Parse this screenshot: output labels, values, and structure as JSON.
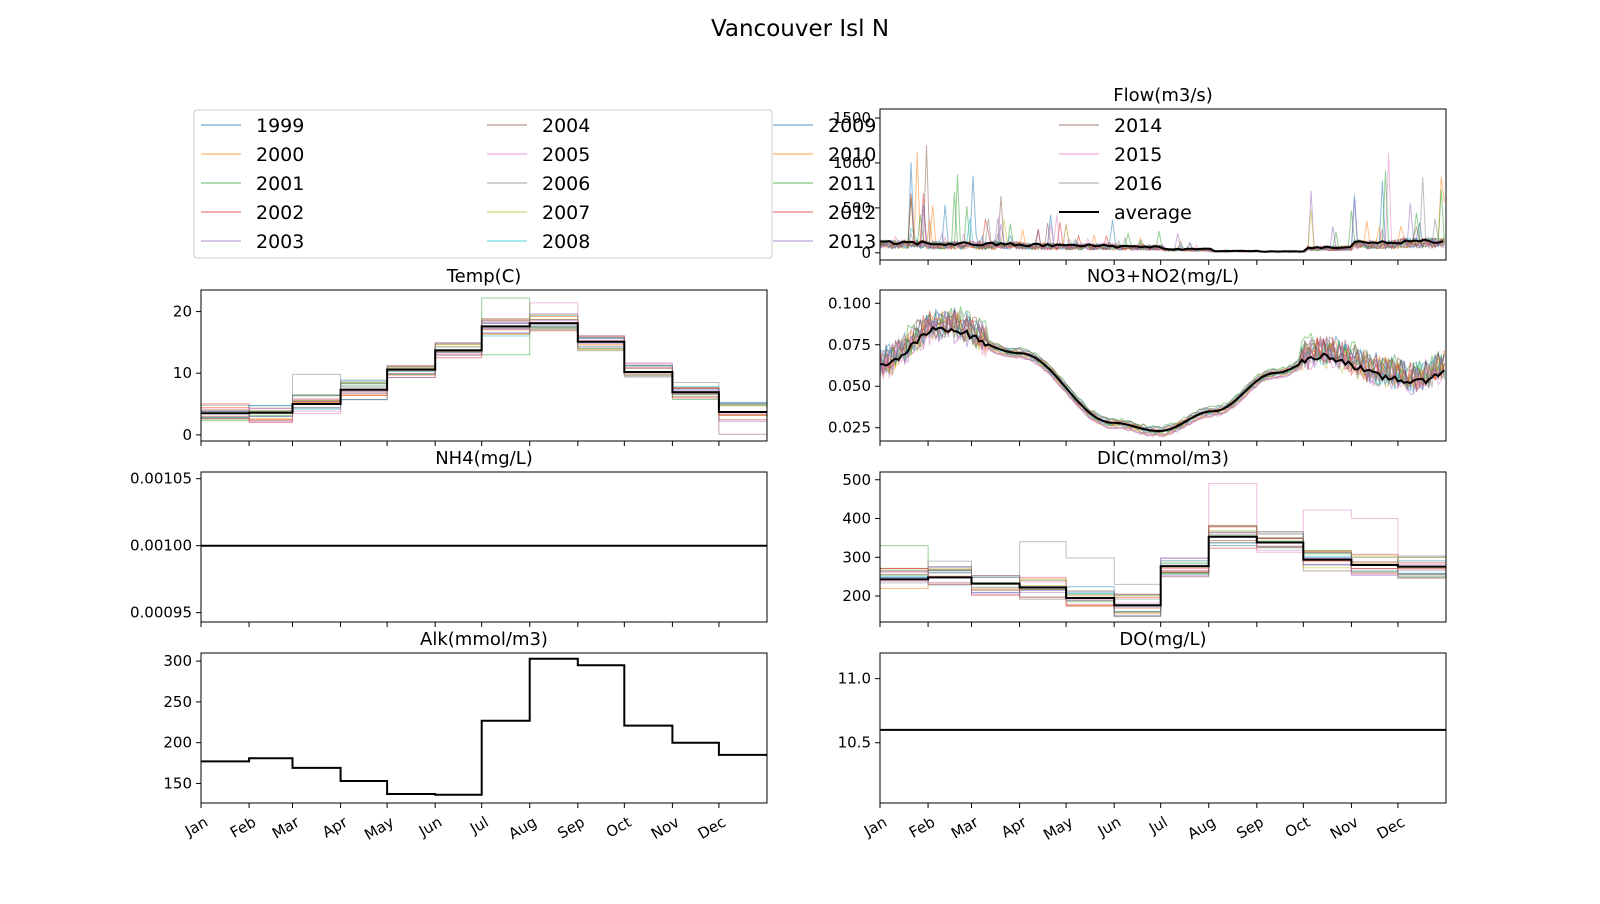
{
  "figure": {
    "title": "Vancouver Isl N"
  },
  "years": [
    "1999",
    "2000",
    "2001",
    "2002",
    "2003",
    "2004",
    "2005",
    "2006",
    "2007",
    "2008",
    "2009",
    "2010",
    "2011",
    "2012",
    "2013",
    "2014",
    "2015",
    "2016"
  ],
  "average_label": "average",
  "colors": {
    "years": [
      "#1f77b4",
      "#ff7f0e",
      "#2ca02c",
      "#d62728",
      "#9467bd",
      "#8c564b",
      "#e377c2",
      "#7f7f7f",
      "#bcbd22",
      "#17becf",
      "#1f77b4",
      "#ff7f0e",
      "#2ca02c",
      "#d62728",
      "#9467bd",
      "#8c564b",
      "#e377c2",
      "#7f7f7f"
    ],
    "average": "#000000"
  },
  "months": [
    "Jan",
    "Feb",
    "Mar",
    "Apr",
    "May",
    "Jun",
    "Jul",
    "Aug",
    "Sep",
    "Oct",
    "Nov",
    "Dec"
  ],
  "legend": {
    "placement": "top-left panel"
  },
  "chart_data": [
    {
      "id": "temp",
      "type": "line",
      "title": "Temp(C)",
      "ylim": [
        -1,
        23.5
      ],
      "yticks": [
        0,
        10,
        20
      ],
      "ytick_labels": [
        "0",
        "10",
        "20"
      ],
      "mode": "monthly",
      "average": [
        3.5,
        3.6,
        5.0,
        7.3,
        10.6,
        13.7,
        17.6,
        18.1,
        15.1,
        10.2,
        6.9,
        3.7
      ],
      "spread": 1.6,
      "overrides": [
        {
          "series": 7,
          "month": 2,
          "value": 9.8
        },
        {
          "series": 12,
          "month": 6,
          "value": 22.2
        },
        {
          "series": 6,
          "month": 7,
          "value": 21.4
        },
        {
          "series": 15,
          "month": 11,
          "value": 0.1
        },
        {
          "series": 2,
          "month": 6,
          "value": 13.0
        }
      ]
    },
    {
      "id": "nh4",
      "type": "line",
      "title": "NH4(mg/L)",
      "ylim": [
        0.000943,
        0.001055
      ],
      "yticks": [
        0.00095,
        0.001,
        0.00105
      ],
      "ytick_labels": [
        "0.00095",
        "0.00100",
        "0.00105"
      ],
      "mode": "constant",
      "value": 0.001
    },
    {
      "id": "alk",
      "type": "line",
      "title": "Alk(mmol/m3)",
      "ylim": [
        126,
        310
      ],
      "yticks": [
        150,
        200,
        250,
        300
      ],
      "ytick_labels": [
        "150",
        "200",
        "250",
        "300"
      ],
      "mode": "monthly",
      "average": [
        177,
        181,
        169,
        153,
        137,
        136,
        227,
        303,
        295,
        221,
        200,
        185
      ],
      "spread": 0
    },
    {
      "id": "flow",
      "type": "line",
      "title": "Flow(m3/s)",
      "ylim": [
        -80,
        1600
      ],
      "yticks": [
        0,
        500,
        1000,
        1500
      ],
      "ytick_labels": [
        "0",
        "500",
        "1000",
        "1500"
      ],
      "mode": "daily-flow",
      "average_base": [
        110,
        100,
        95,
        85,
        80,
        70,
        40,
        20,
        15,
        60,
        110,
        130
      ],
      "peaks": [
        1300,
        1000,
        700,
        850,
        380,
        260,
        230,
        40,
        30,
        950,
        1400,
        1520
      ]
    },
    {
      "id": "no3",
      "type": "line",
      "title": "NO3+NO2(mg/L)",
      "ylim": [
        0.017,
        0.108
      ],
      "yticks": [
        0.025,
        0.05,
        0.075,
        0.1
      ],
      "ytick_labels": [
        "0.025",
        "0.050",
        "0.075",
        "0.100"
      ],
      "mode": "daily-no3",
      "average_points": [
        [
          0,
          0.062
        ],
        [
          40,
          0.085
        ],
        [
          90,
          0.07
        ],
        [
          150,
          0.028
        ],
        [
          180,
          0.023
        ],
        [
          215,
          0.035
        ],
        [
          255,
          0.058
        ],
        [
          285,
          0.068
        ],
        [
          330,
          0.055
        ],
        [
          345,
          0.052
        ],
        [
          365,
          0.059
        ]
      ]
    },
    {
      "id": "dic",
      "type": "line",
      "title": "DIC(mmol/m3)",
      "ylim": [
        133,
        520
      ],
      "yticks": [
        200,
        300,
        400,
        500
      ],
      "ytick_labels": [
        "200",
        "300",
        "400",
        "500"
      ],
      "mode": "monthly",
      "average": [
        243,
        248,
        232,
        222,
        195,
        176,
        277,
        353,
        338,
        294,
        280,
        276
      ],
      "spread": 30,
      "overrides": [
        {
          "series": 2,
          "month": 0,
          "value": 330
        },
        {
          "series": 7,
          "month": 1,
          "value": 290
        },
        {
          "series": 7,
          "month": 3,
          "value": 340
        },
        {
          "series": 7,
          "month": 4,
          "value": 298
        },
        {
          "series": 7,
          "month": 5,
          "value": 230
        },
        {
          "series": 6,
          "month": 7,
          "value": 490
        },
        {
          "series": 6,
          "month": 9,
          "value": 422
        },
        {
          "series": 6,
          "month": 10,
          "value": 400
        }
      ]
    },
    {
      "id": "do",
      "type": "line",
      "title": "DO(mg/L)",
      "ylim": [
        10.03,
        11.2
      ],
      "yticks": [
        10.5,
        11.0
      ],
      "ytick_labels": [
        "10.5",
        "11.0"
      ],
      "mode": "constant",
      "value": 10.6
    }
  ]
}
